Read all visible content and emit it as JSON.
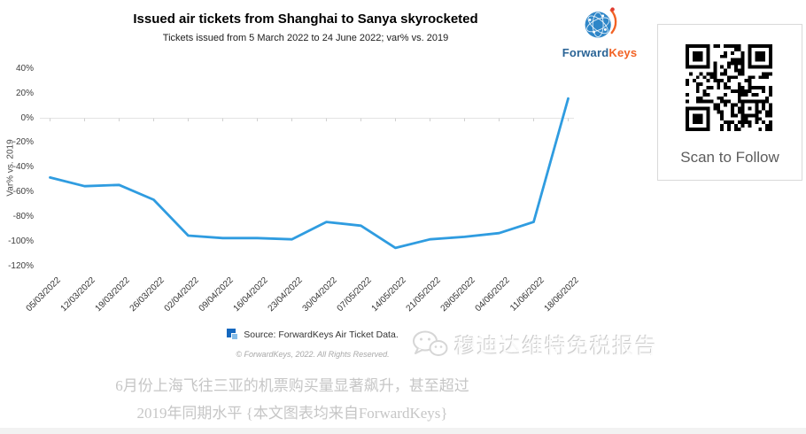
{
  "logo": {
    "text_primary": "Forward",
    "text_secondary": "Keys",
    "primary_color": "#2a6496",
    "secondary_color": "#f26224",
    "globe_color": "#2e86c8",
    "swoosh_color": "#f26224"
  },
  "qr_panel": {
    "caption": "Scan to Follow"
  },
  "chart_data": {
    "type": "line",
    "title": "Issued air tickets from Shanghai to Sanya skyrocketed",
    "subtitle": "Tickets issued from 5 March 2022 to 24 June 2022; var% vs. 2019",
    "xlabel": "",
    "ylabel": "Var% vs. 2019",
    "ylim": [
      -120,
      40
    ],
    "ytick_values": [
      40,
      20,
      0,
      -20,
      -40,
      -60,
      -80,
      -100,
      -120
    ],
    "ytick_labels": [
      "40%",
      "20%",
      "0%",
      "-20%",
      "-40%",
      "-60%",
      "-80%",
      "-100%",
      "-120%"
    ],
    "categories": [
      "05/03/2022",
      "12/03/2022",
      "19/03/2022",
      "26/03/2022",
      "02/04/2022",
      "09/04/2022",
      "16/04/2022",
      "23/04/2022",
      "30/04/2022",
      "07/05/2022",
      "14/05/2022",
      "21/05/2022",
      "28/05/2022",
      "04/06/2022",
      "11/06/2022",
      "18/06/2022"
    ],
    "series": [
      {
        "name": "Source: ForwardKeys Air Ticket Data.",
        "color": "#2f9ce0",
        "values": [
          -48,
          -55,
          -54,
          -66,
          -95,
          -97,
          -97,
          -98,
          -84,
          -87,
          -105,
          -98,
          -96,
          -93,
          -84,
          16
        ]
      }
    ],
    "grid": "horizontal axis line at 0% only, with small ticks at each category",
    "legend_position": "bottom-center"
  },
  "credits": {
    "text": "© ForwardKeys, 2022. All Rights Reserved."
  },
  "watermark": {
    "text": "穆迪达维特免税报告"
  },
  "caption": {
    "line1": "6月份上海飞往三亚的机票购买量显著飙升，甚至超过",
    "line2": "2019年同期水平 {本文图表均来自ForwardKeys}"
  }
}
